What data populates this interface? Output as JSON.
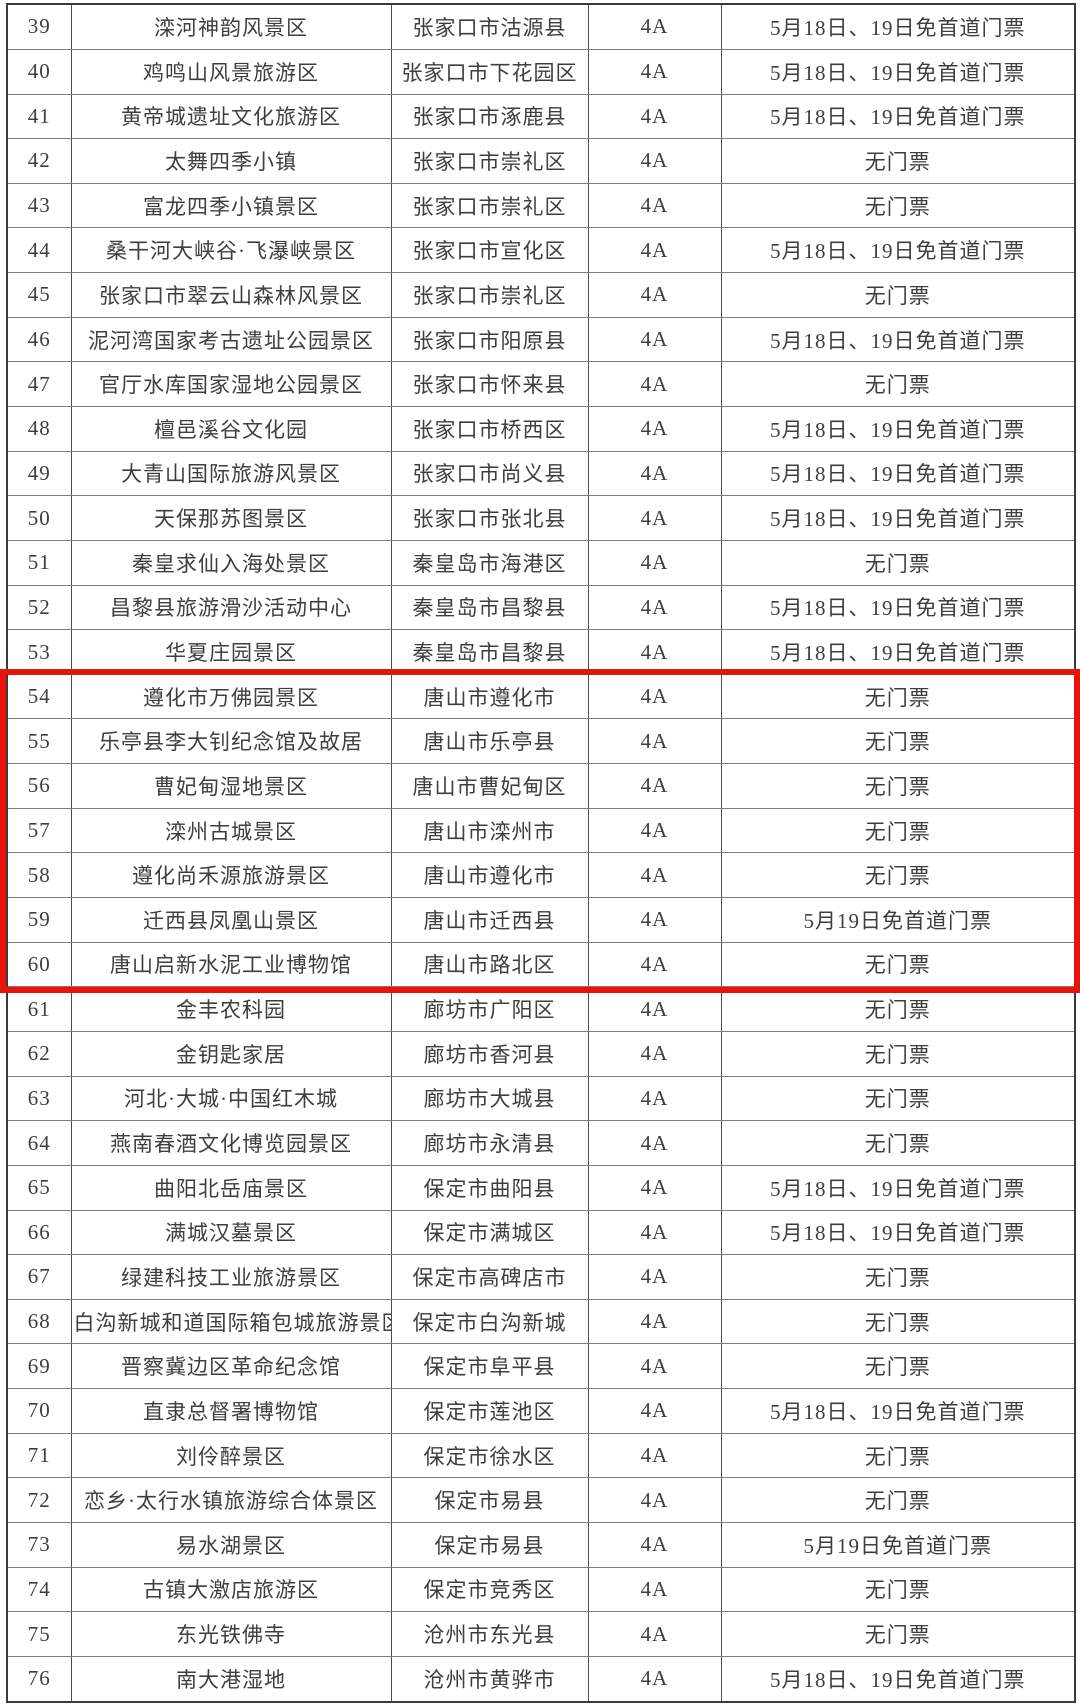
{
  "page": {
    "background_color": "#ffffff",
    "description_visible_content": "portion of a numbered table of 4A scenic areas with ticket policies"
  },
  "table": {
    "columns": [
      "no",
      "name",
      "location",
      "grade",
      "ticket"
    ],
    "rows": [
      {
        "no": "39",
        "name": "滦河神韵风景区",
        "location": "张家口市沽源县",
        "grade": "4A",
        "ticket": "5月18日、19日免首道门票",
        "highlighted": false
      },
      {
        "no": "40",
        "name": "鸡鸣山风景旅游区",
        "location": "张家口市下花园区",
        "grade": "4A",
        "ticket": "5月18日、19日免首道门票",
        "highlighted": false
      },
      {
        "no": "41",
        "name": "黄帝城遗址文化旅游区",
        "location": "张家口市涿鹿县",
        "grade": "4A",
        "ticket": "5月18日、19日免首道门票",
        "highlighted": false
      },
      {
        "no": "42",
        "name": "太舞四季小镇",
        "location": "张家口市崇礼区",
        "grade": "4A",
        "ticket": "无门票",
        "highlighted": false
      },
      {
        "no": "43",
        "name": "富龙四季小镇景区",
        "location": "张家口市崇礼区",
        "grade": "4A",
        "ticket": "无门票",
        "highlighted": false
      },
      {
        "no": "44",
        "name": "桑干河大峡谷·飞瀑峡景区",
        "location": "张家口市宣化区",
        "grade": "4A",
        "ticket": "5月18日、19日免首道门票",
        "highlighted": false
      },
      {
        "no": "45",
        "name": "张家口市翠云山森林风景区",
        "location": "张家口市崇礼区",
        "grade": "4A",
        "ticket": "无门票",
        "highlighted": false
      },
      {
        "no": "46",
        "name": "泥河湾国家考古遗址公园景区",
        "location": "张家口市阳原县",
        "grade": "4A",
        "ticket": "5月18日、19日免首道门票",
        "highlighted": false
      },
      {
        "no": "47",
        "name": "官厅水库国家湿地公园景区",
        "location": "张家口市怀来县",
        "grade": "4A",
        "ticket": "无门票",
        "highlighted": false
      },
      {
        "no": "48",
        "name": "檀邑溪谷文化园",
        "location": "张家口市桥西区",
        "grade": "4A",
        "ticket": "5月18日、19日免首道门票",
        "highlighted": false
      },
      {
        "no": "49",
        "name": "大青山国际旅游风景区",
        "location": "张家口市尚义县",
        "grade": "4A",
        "ticket": "5月18日、19日免首道门票",
        "highlighted": false
      },
      {
        "no": "50",
        "name": "天保那苏图景区",
        "location": "张家口市张北县",
        "grade": "4A",
        "ticket": "5月18日、19日免首道门票",
        "highlighted": false
      },
      {
        "no": "51",
        "name": "秦皇求仙入海处景区",
        "location": "秦皇岛市海港区",
        "grade": "4A",
        "ticket": "无门票",
        "highlighted": false
      },
      {
        "no": "52",
        "name": "昌黎县旅游滑沙活动中心",
        "location": "秦皇岛市昌黎县",
        "grade": "4A",
        "ticket": "5月18日、19日免首道门票",
        "highlighted": false
      },
      {
        "no": "53",
        "name": "华夏庄园景区",
        "location": "秦皇岛市昌黎县",
        "grade": "4A",
        "ticket": "5月18日、19日免首道门票",
        "highlighted": false
      },
      {
        "no": "54",
        "name": "遵化市万佛园景区",
        "location": "唐山市遵化市",
        "grade": "4A",
        "ticket": "无门票",
        "highlighted": true
      },
      {
        "no": "55",
        "name": "乐亭县李大钊纪念馆及故居",
        "location": "唐山市乐亭县",
        "grade": "4A",
        "ticket": "无门票",
        "highlighted": true
      },
      {
        "no": "56",
        "name": "曹妃甸湿地景区",
        "location": "唐山市曹妃甸区",
        "grade": "4A",
        "ticket": "无门票",
        "highlighted": true
      },
      {
        "no": "57",
        "name": "滦州古城景区",
        "location": "唐山市滦州市",
        "grade": "4A",
        "ticket": "无门票",
        "highlighted": true
      },
      {
        "no": "58",
        "name": "遵化尚禾源旅游景区",
        "location": "唐山市遵化市",
        "grade": "4A",
        "ticket": "无门票",
        "highlighted": true
      },
      {
        "no": "59",
        "name": "迁西县凤凰山景区",
        "location": "唐山市迁西县",
        "grade": "4A",
        "ticket": "5月19日免首道门票",
        "highlighted": true
      },
      {
        "no": "60",
        "name": "唐山启新水泥工业博物馆",
        "location": "唐山市路北区",
        "grade": "4A",
        "ticket": "无门票",
        "highlighted": true
      },
      {
        "no": "61",
        "name": "金丰农科园",
        "location": "廊坊市广阳区",
        "grade": "4A",
        "ticket": "无门票",
        "highlighted": false
      },
      {
        "no": "62",
        "name": "金钥匙家居",
        "location": "廊坊市香河县",
        "grade": "4A",
        "ticket": "无门票",
        "highlighted": false
      },
      {
        "no": "63",
        "name": "河北·大城·中国红木城",
        "location": "廊坊市大城县",
        "grade": "4A",
        "ticket": "无门票",
        "highlighted": false
      },
      {
        "no": "64",
        "name": "燕南春酒文化博览园景区",
        "location": "廊坊市永清县",
        "grade": "4A",
        "ticket": "无门票",
        "highlighted": false
      },
      {
        "no": "65",
        "name": "曲阳北岳庙景区",
        "location": "保定市曲阳县",
        "grade": "4A",
        "ticket": "5月18日、19日免首道门票",
        "highlighted": false
      },
      {
        "no": "66",
        "name": "满城汉墓景区",
        "location": "保定市满城区",
        "grade": "4A",
        "ticket": "5月18日、19日免首道门票",
        "highlighted": false
      },
      {
        "no": "67",
        "name": "绿建科技工业旅游景区",
        "location": "保定市高碑店市",
        "grade": "4A",
        "ticket": "无门票",
        "highlighted": false
      },
      {
        "no": "68",
        "name": "白沟新城和道国际箱包城旅游景区",
        "location": "保定市白沟新城",
        "grade": "4A",
        "ticket": "无门票",
        "highlighted": false
      },
      {
        "no": "69",
        "name": "晋察冀边区革命纪念馆",
        "location": "保定市阜平县",
        "grade": "4A",
        "ticket": "无门票",
        "highlighted": false
      },
      {
        "no": "70",
        "name": "直隶总督署博物馆",
        "location": "保定市莲池区",
        "grade": "4A",
        "ticket": "5月18日、19日免首道门票",
        "highlighted": false
      },
      {
        "no": "71",
        "name": "刘伶醉景区",
        "location": "保定市徐水区",
        "grade": "4A",
        "ticket": "无门票",
        "highlighted": false
      },
      {
        "no": "72",
        "name": "恋乡·太行水镇旅游综合体景区",
        "location": "保定市易县",
        "grade": "4A",
        "ticket": "无门票",
        "highlighted": false
      },
      {
        "no": "73",
        "name": "易水湖景区",
        "location": "保定市易县",
        "grade": "4A",
        "ticket": "5月19日免首道门票",
        "highlighted": false
      },
      {
        "no": "74",
        "name": "古镇大激店旅游区",
        "location": "保定市竞秀区",
        "grade": "4A",
        "ticket": "无门票",
        "highlighted": false
      },
      {
        "no": "75",
        "name": "东光铁佛寺",
        "location": "沧州市东光县",
        "grade": "4A",
        "ticket": "无门票",
        "highlighted": false
      },
      {
        "no": "76",
        "name": "南大港湿地",
        "location": "沧州市黄骅市",
        "grade": "4A",
        "ticket": "5月18日、19日免首道门票",
        "highlighted": false
      }
    ]
  },
  "highlight": {
    "row_start": "54",
    "row_end": "60",
    "border_color": "#e9120d"
  }
}
